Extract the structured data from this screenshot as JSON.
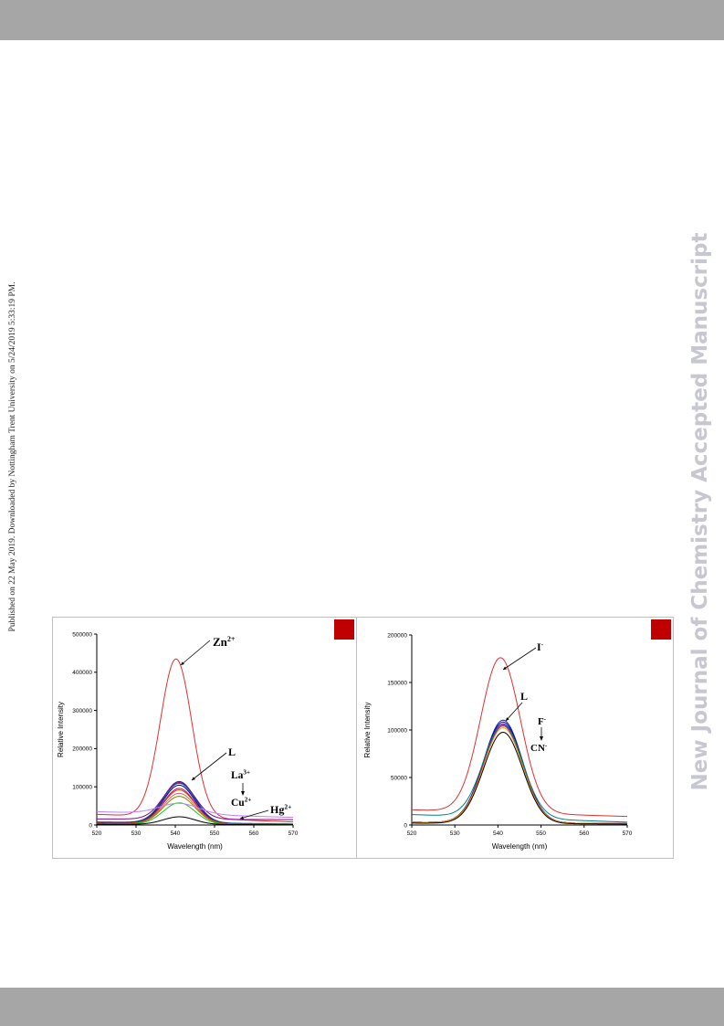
{
  "side_note": "Published on 22 May 2019. Downloaded by Nottingham Trent University on 5/24/2019 5:33:19 PM.",
  "watermark": "New Journal of Chemistry Accepted Manuscript",
  "colors": {
    "accent_mark": "#c00000",
    "bars": "#a6a6a6"
  },
  "chart_data": [
    {
      "type": "line",
      "title": "",
      "xlabel": "Wavelength (nm)",
      "ylabel": "Relative Intensity",
      "xlim": [
        520,
        570
      ],
      "ylim": [
        0,
        500000
      ],
      "xticks": [
        520,
        530,
        540,
        550,
        560,
        570
      ],
      "xtick_labels": [
        "520",
        "530",
        "540",
        "550",
        "560",
        "570"
      ],
      "yticks": [
        0,
        100000,
        200000,
        300000,
        400000,
        500000
      ],
      "ytick_labels": [
        "0",
        "100000",
        "200000",
        "300000",
        "400000",
        "500000"
      ],
      "grid": false,
      "legend": "none",
      "annotations": [
        {
          "base": "Zn",
          "sup": "2+"
        },
        {
          "base": "L",
          "sup": ""
        },
        {
          "base": "La",
          "sup": "3+"
        },
        {
          "base": "Cu",
          "sup": "2+"
        },
        {
          "base": "Hg",
          "sup": "2+"
        }
      ],
      "series": [
        {
          "color": "#e03030",
          "peak": 415000,
          "center": 540.2,
          "sigma": 4.0,
          "baseline": 28000,
          "baseline_end": 8000
        },
        {
          "color": "#1a2b8c",
          "peak": 108000,
          "center": 541.0,
          "sigma": 4.0,
          "baseline": 8000,
          "baseline_end": 3000
        },
        {
          "color": "#008080",
          "peak": 104000,
          "center": 541.0,
          "sigma": 4.0,
          "baseline": 7000,
          "baseline_end": 2500
        },
        {
          "color": "#0000cc",
          "peak": 100000,
          "center": 541.0,
          "sigma": 4.0,
          "baseline": 6000,
          "baseline_end": 2000
        },
        {
          "color": "#8b008b",
          "peak": 96000,
          "center": 541.0,
          "sigma": 4.0,
          "baseline": 16000,
          "baseline_end": 14000
        },
        {
          "color": "#cc0066",
          "peak": 92000,
          "center": 541.0,
          "sigma": 4.0,
          "baseline": 5000,
          "baseline_end": 2000
        },
        {
          "color": "#c04000",
          "peak": 88000,
          "center": 541.0,
          "sigma": 4.0,
          "baseline": 5000,
          "baseline_end": 2000
        },
        {
          "color": "#e06060",
          "peak": 80000,
          "center": 541.0,
          "sigma": 4.0,
          "baseline": 4000,
          "baseline_end": 1500
        },
        {
          "color": "#808000",
          "peak": 72000,
          "center": 541.0,
          "sigma": 4.0,
          "baseline": 4000,
          "baseline_end": 1500
        },
        {
          "color": "#22c022",
          "peak": 56000,
          "center": 541.0,
          "sigma": 4.0,
          "baseline": 3000,
          "baseline_end": 1000
        },
        {
          "color": "#c080ff",
          "peak": 28000,
          "center": 541.0,
          "sigma": 5.0,
          "baseline": 35000,
          "baseline_end": 20000
        },
        {
          "color": "#000000",
          "peak": 20000,
          "center": 541.0,
          "sigma": 4.0,
          "baseline": 2000,
          "baseline_end": 800
        }
      ]
    },
    {
      "type": "line",
      "title": "",
      "xlabel": "Wavelength (nm)",
      "ylabel": "Relative Intensity",
      "xlim": [
        520,
        570
      ],
      "ylim": [
        0,
        200000
      ],
      "xticks": [
        520,
        530,
        540,
        550,
        560,
        570
      ],
      "xtick_labels": [
        "520",
        "530",
        "540",
        "550",
        "560",
        "570"
      ],
      "yticks": [
        0,
        50000,
        100000,
        150000,
        200000
      ],
      "ytick_labels": [
        "0",
        "50000",
        "100000",
        "150000",
        "200000"
      ],
      "grid": false,
      "legend": "none",
      "annotations": [
        {
          "base": "I",
          "sup": "-"
        },
        {
          "base": "L",
          "sup": ""
        },
        {
          "base": "F",
          "sup": "-"
        },
        {
          "base": "CN",
          "sup": "-"
        }
      ],
      "series": [
        {
          "color": "#e03030",
          "peak": 163000,
          "center": 540.6,
          "sigma": 4.6,
          "baseline": 16000,
          "baseline_end": 9000
        },
        {
          "color": "#1a2b8c",
          "peak": 108000,
          "center": 541.2,
          "sigma": 4.5,
          "baseline": 3000,
          "baseline_end": 1500
        },
        {
          "color": "#0000cc",
          "peak": 106000,
          "center": 541.2,
          "sigma": 4.5,
          "baseline": 3000,
          "baseline_end": 1500
        },
        {
          "color": "#8b008b",
          "peak": 104000,
          "center": 541.2,
          "sigma": 4.5,
          "baseline": 3000,
          "baseline_end": 1500
        },
        {
          "color": "#cc0066",
          "peak": 102000,
          "center": 541.2,
          "sigma": 4.5,
          "baseline": 3000,
          "baseline_end": 1500
        },
        {
          "color": "#e0a000",
          "peak": 100000,
          "center": 541.2,
          "sigma": 4.5,
          "baseline": 3000,
          "baseline_end": 1500
        },
        {
          "color": "#008080",
          "peak": 98000,
          "center": 541.2,
          "sigma": 4.5,
          "baseline": 11000,
          "baseline_end": 3000
        },
        {
          "color": "#000000",
          "peak": 96000,
          "center": 541.2,
          "sigma": 4.5,
          "baseline": 2000,
          "baseline_end": 1000
        }
      ]
    }
  ]
}
